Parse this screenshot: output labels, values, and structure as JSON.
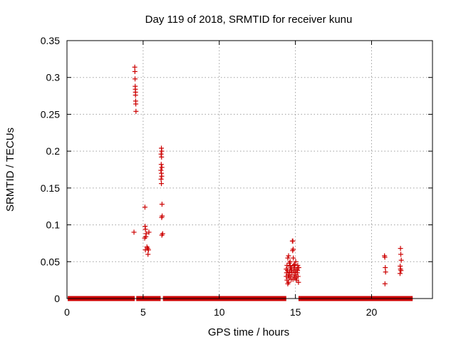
{
  "chart_data": {
    "type": "scatter",
    "title": "Day 119 of 2018, SRMTID for receiver kunu",
    "xlabel": "GPS time / hours",
    "ylabel": "SRMTID / TECUs",
    "xlim": [
      0,
      24
    ],
    "ylim": [
      0,
      0.35
    ],
    "xticks": [
      0,
      5,
      10,
      15,
      20
    ],
    "yticks": [
      0,
      0.05,
      0.1,
      0.15,
      0.2,
      0.25,
      0.3,
      0.35
    ],
    "xtick_labels": [
      "0",
      "5",
      "10",
      "15",
      "20"
    ],
    "ytick_labels": [
      "0",
      "0.05",
      "0.1",
      "0.15",
      "0.2",
      "0.25",
      "0.3",
      "0.35"
    ],
    "grid": true,
    "marker": "+",
    "color": "#cc0000",
    "series": [
      {
        "name": "SRMTID",
        "points": [
          [
            4.45,
            0.314
          ],
          [
            4.46,
            0.308
          ],
          [
            4.47,
            0.298
          ],
          [
            4.48,
            0.288
          ],
          [
            4.49,
            0.284
          ],
          [
            4.5,
            0.28
          ],
          [
            4.5,
            0.276
          ],
          [
            4.51,
            0.268
          ],
          [
            4.52,
            0.264
          ],
          [
            4.53,
            0.254
          ],
          [
            4.4,
            0.09
          ],
          [
            5.12,
            0.124
          ],
          [
            5.13,
            0.098
          ],
          [
            5.15,
            0.094
          ],
          [
            5.2,
            0.088
          ],
          [
            5.18,
            0.084
          ],
          [
            5.1,
            0.082
          ],
          [
            5.25,
            0.07
          ],
          [
            5.3,
            0.068
          ],
          [
            5.15,
            0.066
          ],
          [
            5.35,
            0.066
          ],
          [
            5.32,
            0.06
          ],
          [
            5.38,
            0.09
          ],
          [
            6.2,
            0.204
          ],
          [
            6.22,
            0.2
          ],
          [
            6.18,
            0.196
          ],
          [
            6.21,
            0.192
          ],
          [
            6.19,
            0.182
          ],
          [
            6.23,
            0.178
          ],
          [
            6.17,
            0.174
          ],
          [
            6.2,
            0.17
          ],
          [
            6.22,
            0.166
          ],
          [
            6.18,
            0.162
          ],
          [
            6.2,
            0.156
          ],
          [
            6.24,
            0.128
          ],
          [
            6.25,
            0.112
          ],
          [
            6.22,
            0.11
          ],
          [
            6.28,
            0.088
          ],
          [
            6.23,
            0.086
          ],
          [
            14.4,
            0.04
          ],
          [
            14.45,
            0.045
          ],
          [
            14.5,
            0.055
          ],
          [
            14.55,
            0.058
          ],
          [
            14.6,
            0.048
          ],
          [
            14.4,
            0.03
          ],
          [
            14.45,
            0.025
          ],
          [
            14.5,
            0.02
          ],
          [
            14.55,
            0.022
          ],
          [
            14.42,
            0.035
          ],
          [
            14.48,
            0.038
          ],
          [
            14.52,
            0.032
          ],
          [
            14.58,
            0.028
          ],
          [
            14.62,
            0.036
          ],
          [
            14.65,
            0.05
          ],
          [
            14.68,
            0.042
          ],
          [
            14.7,
            0.03
          ],
          [
            14.72,
            0.026
          ],
          [
            14.75,
            0.04
          ],
          [
            14.78,
            0.035
          ],
          [
            14.8,
            0.078
          ],
          [
            14.83,
            0.078
          ],
          [
            14.85,
            0.067
          ],
          [
            14.82,
            0.065
          ],
          [
            14.86,
            0.055
          ],
          [
            14.88,
            0.045
          ],
          [
            14.9,
            0.038
          ],
          [
            14.92,
            0.032
          ],
          [
            14.95,
            0.028
          ],
          [
            14.97,
            0.042
          ],
          [
            15.0,
            0.036
          ],
          [
            15.02,
            0.05
          ],
          [
            15.05,
            0.03
          ],
          [
            15.08,
            0.025
          ],
          [
            15.1,
            0.04
          ],
          [
            15.12,
            0.035
          ],
          [
            15.15,
            0.045
          ],
          [
            15.17,
            0.03
          ],
          [
            15.2,
            0.022
          ],
          [
            15.22,
            0.042
          ],
          [
            14.6,
            0.032
          ],
          [
            14.66,
            0.044
          ],
          [
            14.74,
            0.038
          ],
          [
            14.84,
            0.026
          ],
          [
            14.94,
            0.046
          ],
          [
            15.04,
            0.028
          ],
          [
            15.14,
            0.038
          ],
          [
            20.85,
            0.058
          ],
          [
            20.87,
            0.056
          ],
          [
            20.9,
            0.042
          ],
          [
            20.92,
            0.036
          ],
          [
            20.88,
            0.02
          ],
          [
            21.9,
            0.068
          ],
          [
            21.92,
            0.06
          ],
          [
            21.95,
            0.052
          ],
          [
            21.88,
            0.044
          ],
          [
            21.9,
            0.04
          ],
          [
            21.93,
            0.038
          ],
          [
            21.87,
            0.034
          ]
        ],
        "zero_ranges": [
          [
            0.05,
            4.45
          ],
          [
            4.55,
            6.15
          ],
          [
            6.3,
            14.4
          ],
          [
            15.2,
            22.7
          ]
        ]
      }
    ]
  }
}
